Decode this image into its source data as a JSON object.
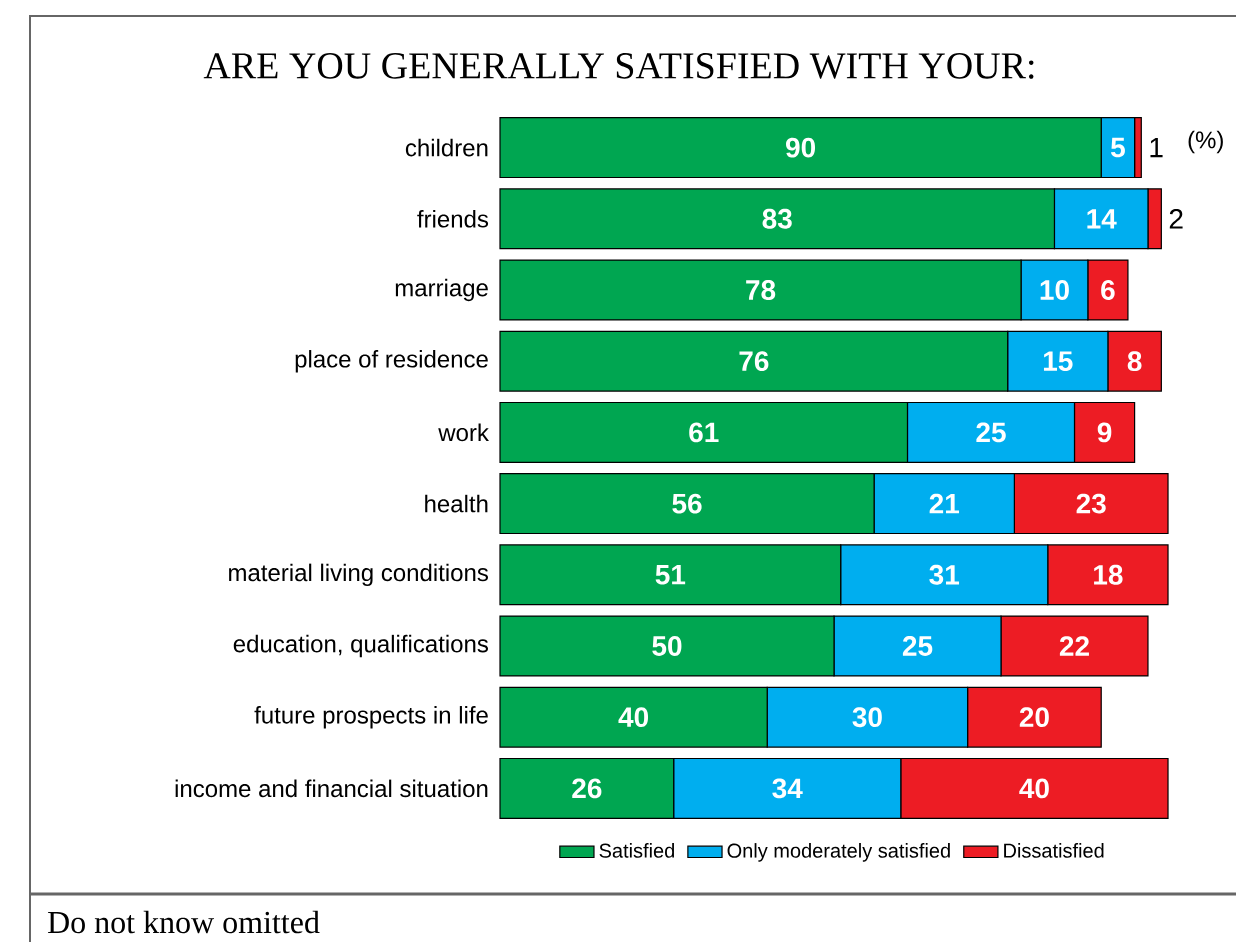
{
  "chart_data": {
    "type": "bar",
    "orientation": "horizontal",
    "stacked": true,
    "title": "ARE YOU GENERALLY SATISFIED WITH YOUR:",
    "categories": [
      "children",
      "friends",
      "marriage",
      "place of residence",
      "work",
      "health",
      "material living conditions",
      "education, qualifications",
      "future prospects in life",
      "income and financial situation"
    ],
    "series": [
      {
        "name": "Satisfied",
        "color": "#00a651",
        "values": [
          90,
          83,
          78,
          76,
          61,
          56,
          51,
          50,
          40,
          26
        ]
      },
      {
        "name": "Only moderately satisfied",
        "color": "#00aeef",
        "values": [
          5,
          14,
          10,
          15,
          25,
          21,
          31,
          25,
          30,
          34
        ]
      },
      {
        "name": "Dissatisfied",
        "color": "#ed1c24",
        "values": [
          1,
          2,
          6,
          8,
          9,
          23,
          18,
          22,
          20,
          40
        ]
      }
    ],
    "data_labels": true,
    "legend": "bottom",
    "annotations": [
      "(%)",
      "Do not know omitted"
    ]
  }
}
